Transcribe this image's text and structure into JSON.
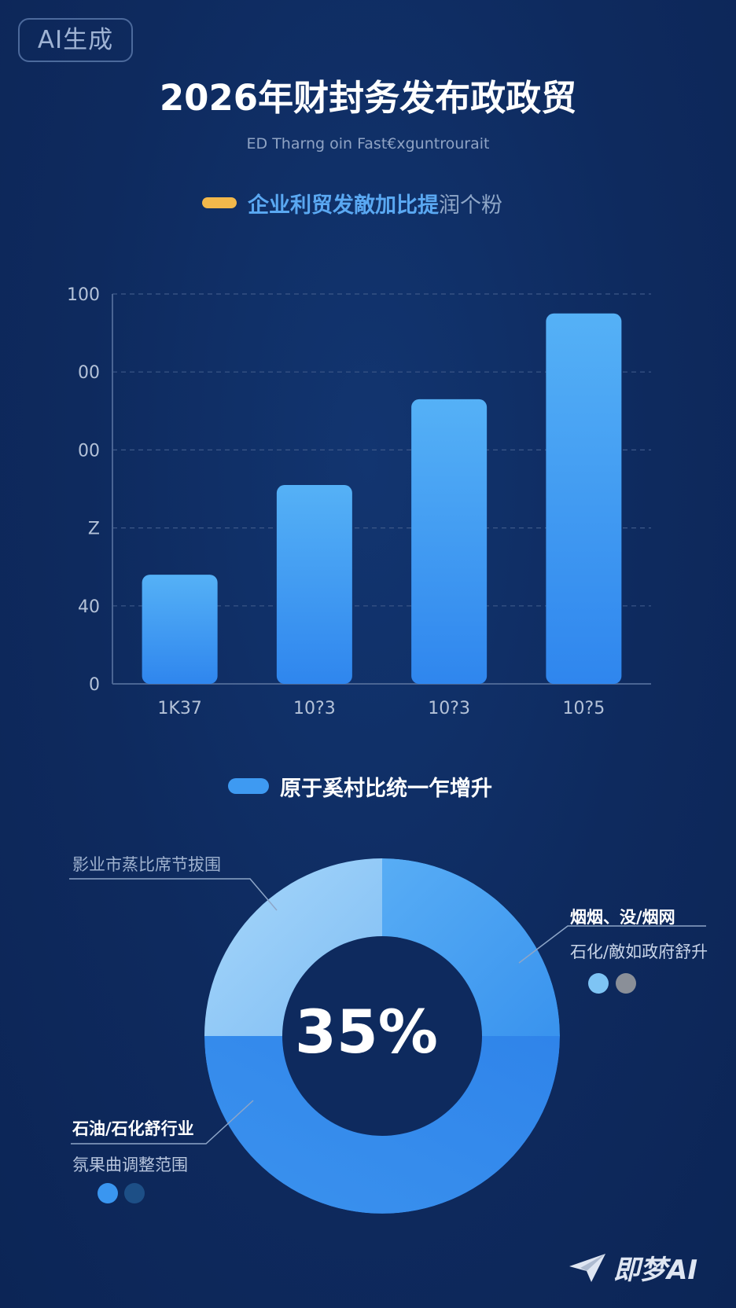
{
  "badge": "AI生成",
  "title": "2026年财封务发布政政贸",
  "subtitle": "ED Tharng oin Fast€xguntrourait",
  "bar_legend": {
    "label": "企业利贸发敵加比提",
    "label_tail": "润个粉",
    "color": "#f2b84b"
  },
  "donut_legend": {
    "label": "原于奚村比统一乍增升",
    "color": "#3e9af2"
  },
  "chart_data": [
    {
      "type": "bar",
      "categories": [
        "1K37",
        "10?3",
        "10?3",
        "10?5"
      ],
      "yticks": [
        "0",
        "40",
        "Z",
        "00",
        "00",
        "100"
      ],
      "values": [
        28,
        51,
        73,
        95
      ],
      "ylim": [
        0,
        100
      ],
      "grid": true,
      "colors": {
        "top": "#55b1f6",
        "bottom": "#2f86ee"
      }
    },
    {
      "type": "pie",
      "center_label": "35%",
      "slices": [
        {
          "name": "影业市蒸比席节拔围",
          "value": 25,
          "color": "#8fcbf7"
        },
        {
          "name": "烟烟、没/烟网",
          "value": 25,
          "color": "#4aa2f1"
        },
        {
          "name": "石油/石化舒行业",
          "value": 50,
          "color": "#3487ec"
        }
      ]
    }
  ],
  "callouts": {
    "top_left": "影业市蒸比席节拔围",
    "right_title": "烟烟、没/烟网",
    "right_sub": "石化/敵如政府舒升",
    "left_title": "石油/石化舒行业",
    "left_sub": "氛果曲调整范围"
  },
  "dots": {
    "right": [
      "#7ec4f4",
      "#8a8f98"
    ],
    "left": [
      "#3a96f0",
      "#1d4f86"
    ]
  },
  "watermark": "即梦AI"
}
